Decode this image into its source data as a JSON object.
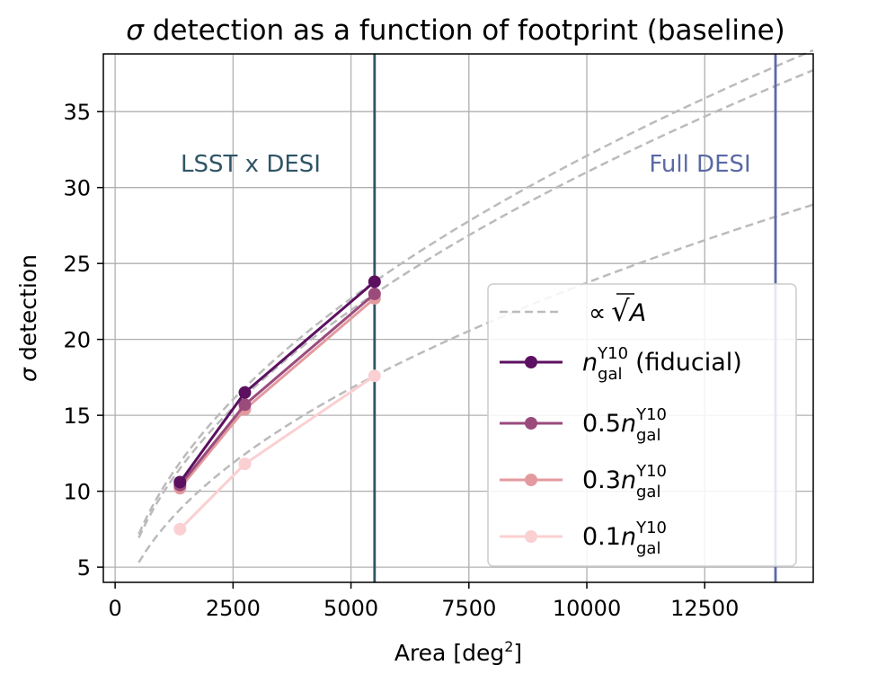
{
  "chart_data": {
    "type": "line",
    "title_prefix": "σ",
    "title_rest": " detection as a function of footprint (baseline)",
    "xlabel": "Area [deg",
    "xlabel_sup": "2",
    "xlabel_end": "]",
    "ylabel_sym": "σ",
    "ylabel_rest": " detection",
    "xlim": [
      -250,
      14800
    ],
    "ylim": [
      4,
      38.8
    ],
    "xticks": [
      0,
      2500,
      5000,
      7500,
      10000,
      12500
    ],
    "xtick_labels": [
      "0",
      "2500",
      "5000",
      "7500",
      "10000",
      "12500"
    ],
    "yticks": [
      5,
      10,
      15,
      20,
      25,
      30,
      35
    ],
    "ytick_labels": [
      "5",
      "10",
      "15",
      "20",
      "25",
      "30",
      "35"
    ],
    "grid": true,
    "vlines": [
      {
        "x": 5500,
        "label": "LSST x DESI",
        "color": "#2f5566"
      },
      {
        "x": 14000,
        "label": "Full DESI",
        "color": "#5a69a5"
      }
    ],
    "sqrt_reference": {
      "label_prefix": "∝",
      "label_radical": "√",
      "label_var": "A",
      "color": "#bbbbbb",
      "curves": [
        {
          "x_range": [
            500,
            14800
          ],
          "y_at_5500": 23.8
        },
        {
          "x_range": [
            500,
            14800
          ],
          "y_at_5500": 23.0
        },
        {
          "x_range": [
            500,
            14800
          ],
          "y_at_5500": 17.6
        }
      ]
    },
    "series": [
      {
        "name_coef": "",
        "name_sup": "Y10",
        "name_sub": "gal",
        "name_suffix": " (fiducial)",
        "color": "#5c1060",
        "x": [
          1375,
          2750,
          5500
        ],
        "y": [
          10.6,
          16.5,
          23.8
        ]
      },
      {
        "name_coef": "0.5",
        "name_sup": "Y10",
        "name_sub": "gal",
        "name_suffix": "",
        "color": "#9a4b7c",
        "x": [
          1375,
          2750,
          5500
        ],
        "y": [
          10.4,
          15.7,
          23.0
        ]
      },
      {
        "name_coef": "0.3",
        "name_sup": "Y10",
        "name_sub": "gal",
        "name_suffix": "",
        "color": "#e39a9f",
        "x": [
          1375,
          2750,
          5500
        ],
        "y": [
          10.2,
          15.4,
          22.7
        ]
      },
      {
        "name_coef": "0.1",
        "name_sup": "Y10",
        "name_sub": "gal",
        "name_suffix": "",
        "color": "#fad0d2",
        "x": [
          1375,
          2750,
          5500
        ],
        "y": [
          7.5,
          11.8,
          17.6
        ]
      }
    ],
    "legend_placement": "lower-right"
  }
}
